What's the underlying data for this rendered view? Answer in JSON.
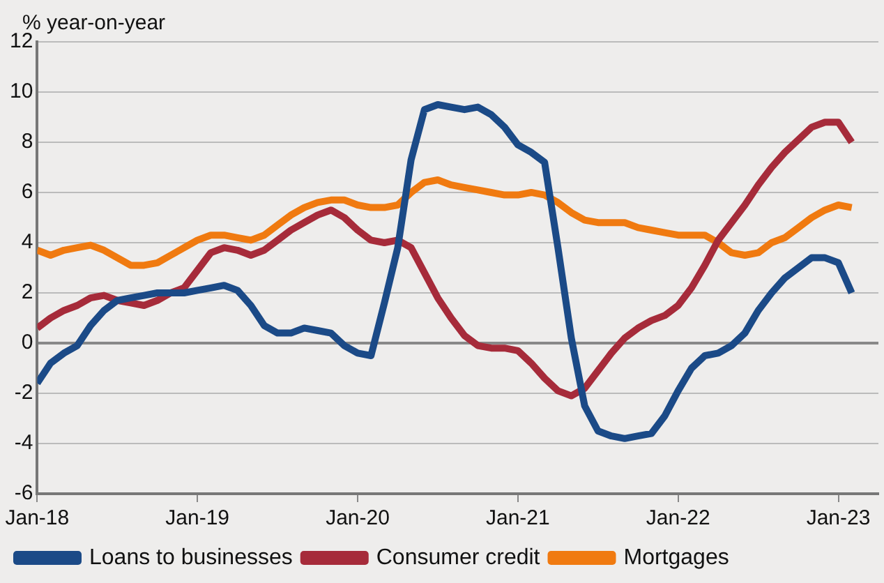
{
  "chart_data": {
    "type": "line",
    "ylabel": "% year-on-year",
    "x": [
      "2018-01",
      "2018-02",
      "2018-03",
      "2018-04",
      "2018-05",
      "2018-06",
      "2018-07",
      "2018-08",
      "2018-09",
      "2018-10",
      "2018-11",
      "2018-12",
      "2019-01",
      "2019-02",
      "2019-03",
      "2019-04",
      "2019-05",
      "2019-06",
      "2019-07",
      "2019-08",
      "2019-09",
      "2019-10",
      "2019-11",
      "2019-12",
      "2020-01",
      "2020-02",
      "2020-03",
      "2020-04",
      "2020-05",
      "2020-06",
      "2020-07",
      "2020-08",
      "2020-09",
      "2020-10",
      "2020-11",
      "2020-12",
      "2021-01",
      "2021-02",
      "2021-03",
      "2021-04",
      "2021-05",
      "2021-06",
      "2021-07",
      "2021-08",
      "2021-09",
      "2021-10",
      "2021-11",
      "2021-12",
      "2022-01",
      "2022-02",
      "2022-03",
      "2022-04",
      "2022-05",
      "2022-06",
      "2022-07",
      "2022-08",
      "2022-09",
      "2022-10",
      "2022-11",
      "2022-12",
      "2023-01",
      "2023-02"
    ],
    "series": [
      {
        "name": "Loans to businesses",
        "color": "#1b4a87",
        "values": [
          -1.6,
          -0.8,
          -0.4,
          -0.1,
          0.7,
          1.3,
          1.7,
          1.8,
          1.9,
          2.0,
          2.0,
          2.0,
          2.1,
          2.2,
          2.3,
          2.1,
          1.5,
          0.7,
          0.4,
          0.4,
          0.6,
          0.5,
          0.4,
          -0.1,
          -0.4,
          -0.5,
          1.6,
          3.8,
          7.3,
          9.3,
          9.5,
          9.4,
          9.3,
          9.4,
          9.1,
          8.6,
          7.9,
          7.6,
          7.2,
          3.8,
          0.2,
          -2.5,
          -3.5,
          -3.7,
          -3.8,
          -3.7,
          -3.6,
          -2.9,
          -1.9,
          -1.0,
          -0.5,
          -0.4,
          -0.1,
          0.4,
          1.3,
          2.0,
          2.6,
          3.0,
          3.4,
          3.4,
          3.2,
          2.0
        ]
      },
      {
        "name": "Consumer credit",
        "color": "#a62b3a",
        "values": [
          0.6,
          1.0,
          1.3,
          1.5,
          1.8,
          1.9,
          1.7,
          1.6,
          1.5,
          1.7,
          2.0,
          2.2,
          2.9,
          3.6,
          3.8,
          3.7,
          3.5,
          3.7,
          4.1,
          4.5,
          4.8,
          5.1,
          5.3,
          5.0,
          4.5,
          4.1,
          4.0,
          4.1,
          3.8,
          2.8,
          1.8,
          1.0,
          0.3,
          -0.1,
          -0.2,
          -0.2,
          -0.3,
          -0.8,
          -1.4,
          -1.9,
          -2.1,
          -1.8,
          -1.1,
          -0.4,
          0.2,
          0.6,
          0.9,
          1.1,
          1.5,
          2.2,
          3.1,
          4.1,
          4.8,
          5.5,
          6.3,
          7.0,
          7.6,
          8.1,
          8.6,
          8.8,
          8.8,
          8.0
        ]
      },
      {
        "name": "Mortgages",
        "color": "#f07a10",
        "values": [
          3.7,
          3.5,
          3.7,
          3.8,
          3.9,
          3.7,
          3.4,
          3.1,
          3.1,
          3.2,
          3.5,
          3.8,
          4.1,
          4.3,
          4.3,
          4.2,
          4.1,
          4.3,
          4.7,
          5.1,
          5.4,
          5.6,
          5.7,
          5.7,
          5.5,
          5.4,
          5.4,
          5.5,
          6.0,
          6.4,
          6.5,
          6.3,
          6.2,
          6.1,
          6.0,
          5.9,
          5.9,
          6.0,
          5.9,
          5.6,
          5.2,
          4.9,
          4.8,
          4.8,
          4.8,
          4.6,
          4.5,
          4.4,
          4.3,
          4.3,
          4.3,
          4.0,
          3.6,
          3.5,
          3.6,
          4.0,
          4.2,
          4.6,
          5.0,
          5.3,
          5.5,
          5.4
        ]
      }
    ],
    "xlim": [
      "2018-01",
      "2023-04"
    ],
    "xticks": [
      {
        "value": "2018-01",
        "label": "Jan-18"
      },
      {
        "value": "2019-01",
        "label": "Jan-19"
      },
      {
        "value": "2020-01",
        "label": "Jan-20"
      },
      {
        "value": "2021-01",
        "label": "Jan-21"
      },
      {
        "value": "2022-01",
        "label": "Jan-22"
      },
      {
        "value": "2023-01",
        "label": "Jan-23"
      }
    ],
    "ylim": [
      -6,
      12
    ],
    "yticks": [
      -6,
      -4,
      -2,
      0,
      2,
      4,
      6,
      8,
      10,
      12
    ],
    "grid": "y",
    "legend": "bottom",
    "marker": "none",
    "line_style": "solid"
  }
}
